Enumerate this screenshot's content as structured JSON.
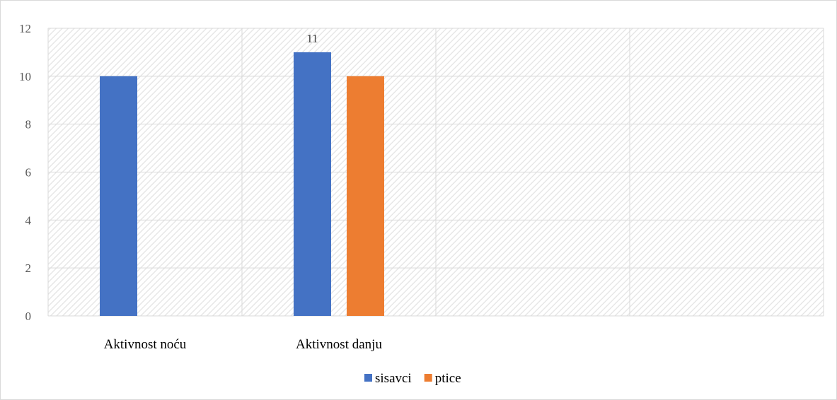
{
  "chart_data": {
    "type": "bar",
    "categories": [
      "Aktivnost noću",
      "Aktivnost danju",
      "",
      ""
    ],
    "series": [
      {
        "name": "sisavci",
        "color": "#4472C4",
        "values": [
          10,
          11,
          null,
          null
        ]
      },
      {
        "name": "ptice",
        "color": "#ED7D31",
        "values": [
          null,
          10,
          null,
          null
        ]
      }
    ],
    "data_labels": [
      {
        "series": 0,
        "category": 1,
        "text": "11"
      }
    ],
    "ylim": [
      0,
      12
    ],
    "yticks": [
      0,
      2,
      4,
      6,
      8,
      10,
      12
    ],
    "grid": true,
    "legend": "bottom",
    "background_pattern": "diagonal-hatch"
  }
}
